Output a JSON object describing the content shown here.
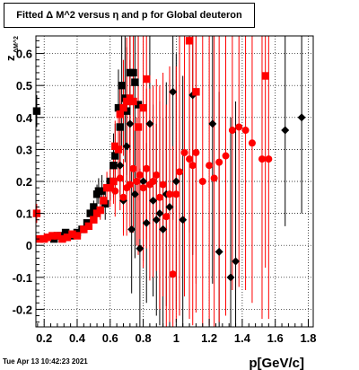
{
  "chart_data": {
    "type": "scatter",
    "title": "Fitted Δ M^2 versus η and p for Global deuteron",
    "xlabel": "p[GeV/c]",
    "ylabel": "z",
    "ylabel_sub": "ΔM^2",
    "xlim": [
      0.15,
      1.83
    ],
    "ylim": [
      -0.255,
      0.655
    ],
    "xticks": [
      "0.2",
      "0.4",
      "0.6",
      "0.8",
      "1",
      "1.2",
      "1.4",
      "1.6",
      "1.8"
    ],
    "xtick_values": [
      0.2,
      0.4,
      0.6,
      0.8,
      1.0,
      1.2,
      1.4,
      1.6,
      1.8
    ],
    "yticks": [
      "-0.2",
      "-0.1",
      "0",
      "0.1",
      "0.2",
      "0.3",
      "0.4",
      "0.5",
      "0.6"
    ],
    "ytick_values": [
      -0.2,
      -0.1,
      0,
      0.1,
      0.2,
      0.3,
      0.4,
      0.5,
      0.6
    ],
    "grid": true,
    "timestamp": "Tue Apr 13 10:42:23 2021",
    "series": [
      {
        "color": "#000000",
        "marker": "square",
        "points": [
          [
            0.155,
            0.42,
            0.05
          ],
          [
            0.26,
            0.02,
            0
          ],
          [
            0.28,
            0.03,
            0
          ],
          [
            0.3,
            0.03,
            0
          ],
          [
            0.33,
            0.04,
            0
          ],
          [
            0.36,
            0.03,
            0
          ],
          [
            0.4,
            0.04,
            0
          ],
          [
            0.43,
            0.05,
            0
          ],
          [
            0.46,
            0.07,
            0
          ],
          [
            0.48,
            0.1,
            0
          ],
          [
            0.5,
            0.12,
            0.02
          ],
          [
            0.52,
            0.16,
            0.03
          ],
          [
            0.53,
            0.17,
            0.04
          ],
          [
            0.55,
            0.17,
            0.05
          ],
          [
            0.57,
            0.13,
            0.05
          ],
          [
            0.6,
            0.2,
            0.06
          ],
          [
            0.62,
            0.25,
            0.1
          ],
          [
            0.63,
            0.28,
            0.1
          ],
          [
            0.65,
            0.43,
            0.12
          ],
          [
            0.66,
            0.37,
            0.12
          ],
          [
            0.67,
            0.5,
            0.2
          ],
          [
            0.69,
            0.46,
            0.2
          ],
          [
            0.7,
            0.42,
            0.2
          ],
          [
            0.72,
            0.54,
            0.25
          ],
          [
            0.74,
            0.54,
            0.3
          ],
          [
            0.75,
            0.51,
            0.3
          ],
          [
            0.77,
            0.44,
            0.3
          ]
        ]
      },
      {
        "color": "#000000",
        "marker": "diamond",
        "points": [
          [
            0.66,
            0.25,
            0.1
          ],
          [
            0.68,
            0.14,
            0.1
          ],
          [
            0.7,
            0.31,
            0.15
          ],
          [
            0.72,
            0.38,
            0.2
          ],
          [
            0.73,
            0.05,
            0.2
          ],
          [
            0.75,
            0.16,
            0.2
          ],
          [
            0.78,
            -0.01,
            0.25
          ],
          [
            0.8,
            0.2,
            0.25
          ],
          [
            0.82,
            0.07,
            0.25
          ],
          [
            0.84,
            0.38,
            0.3
          ],
          [
            0.86,
            0.14,
            0.3
          ],
          [
            0.88,
            0.08,
            0.3
          ],
          [
            0.9,
            0.1,
            0.35
          ],
          [
            0.92,
            0.05,
            0.35
          ],
          [
            0.94,
            0.16,
            0.35
          ],
          [
            0.96,
            0.12,
            0.4
          ],
          [
            0.98,
            0.48,
            0.4
          ],
          [
            1.0,
            0.2,
            0.4
          ],
          [
            1.04,
            0.08,
            0.45
          ],
          [
            1.1,
            0.47,
            0.5
          ],
          [
            1.22,
            0.38,
            0.5
          ],
          [
            1.26,
            -0.02,
            0.5
          ],
          [
            1.33,
            -0.1,
            0.5
          ],
          [
            1.36,
            -0.05,
            0.5
          ],
          [
            1.66,
            0.36,
            0.3
          ],
          [
            1.76,
            0.4,
            0.3
          ]
        ]
      },
      {
        "color": "#ff0000",
        "marker": "square",
        "points": [
          [
            0.155,
            0.1,
            0.03
          ],
          [
            0.17,
            0.02,
            0
          ],
          [
            0.2,
            0.02,
            0
          ],
          [
            0.22,
            0.025,
            0
          ],
          [
            0.25,
            0.03,
            0
          ],
          [
            0.28,
            0.03,
            0
          ],
          [
            0.31,
            0.02,
            0
          ],
          [
            0.34,
            0.025,
            0
          ],
          [
            0.37,
            0.035,
            0
          ],
          [
            0.4,
            0.03,
            0
          ],
          [
            0.44,
            0.05,
            0
          ],
          [
            0.47,
            0.06,
            0
          ],
          [
            0.5,
            0.08,
            0.01
          ],
          [
            0.52,
            0.1,
            0.02
          ],
          [
            0.54,
            0.11,
            0.03
          ],
          [
            0.56,
            0.14,
            0.04
          ],
          [
            0.58,
            0.18,
            0.05
          ],
          [
            0.6,
            0.18,
            0.06
          ],
          [
            0.62,
            0.2,
            0.07
          ],
          [
            0.63,
            0.31,
            0.08
          ],
          [
            0.65,
            0.3,
            0.1
          ],
          [
            0.66,
            0.41,
            0.1
          ],
          [
            0.68,
            0.43,
            0.15
          ],
          [
            0.7,
            0.45,
            0.2
          ],
          [
            0.72,
            0.46,
            0.25
          ],
          [
            0.74,
            0.45,
            0.3
          ],
          [
            0.77,
            0.37,
            0.4
          ],
          [
            0.8,
            0.43,
            0.45
          ],
          [
            0.82,
            0.52,
            0.5
          ],
          [
            1.08,
            0.64,
            0.6
          ],
          [
            1.12,
            0.48,
            0.6
          ],
          [
            1.54,
            0.53,
            0.6
          ]
        ]
      },
      {
        "color": "#ff0000",
        "marker": "circle",
        "points": [
          [
            0.63,
            0.17,
            0.08
          ],
          [
            0.66,
            0.21,
            0.1
          ],
          [
            0.68,
            0.15,
            0.12
          ],
          [
            0.7,
            0.18,
            0.15
          ],
          [
            0.72,
            0.19,
            0.15
          ],
          [
            0.74,
            0.24,
            0.2
          ],
          [
            0.76,
            0.2,
            0.2
          ],
          [
            0.78,
            0.22,
            0.2
          ],
          [
            0.8,
            0.18,
            0.25
          ],
          [
            0.82,
            0.24,
            0.25
          ],
          [
            0.84,
            0.19,
            0.3
          ],
          [
            0.86,
            0.2,
            0.3
          ],
          [
            0.88,
            0.22,
            0.3
          ],
          [
            0.9,
            0.15,
            0.35
          ],
          [
            0.92,
            0.19,
            0.35
          ],
          [
            0.94,
            0.09,
            0.35
          ],
          [
            0.96,
            0.16,
            0.4
          ],
          [
            0.98,
            -0.09,
            0.4
          ],
          [
            1.0,
            0.16,
            0.4
          ],
          [
            1.02,
            0.23,
            0.45
          ],
          [
            1.05,
            0.29,
            0.45
          ],
          [
            1.08,
            0.27,
            0.5
          ],
          [
            1.1,
            0.25,
            0.5
          ],
          [
            1.12,
            0.29,
            0.5
          ],
          [
            1.16,
            0.2,
            0.5
          ],
          [
            1.2,
            0.25,
            0.5
          ],
          [
            1.23,
            0.21,
            0.5
          ],
          [
            1.26,
            0.26,
            0.5
          ],
          [
            1.3,
            0.28,
            0.5
          ],
          [
            1.34,
            0.36,
            0.5
          ],
          [
            1.38,
            0.37,
            0.5
          ],
          [
            1.42,
            0.36,
            0.5
          ],
          [
            1.46,
            0.32,
            0.5
          ],
          [
            1.52,
            0.27,
            0.5
          ],
          [
            1.56,
            0.27,
            0.5
          ]
        ]
      }
    ]
  }
}
